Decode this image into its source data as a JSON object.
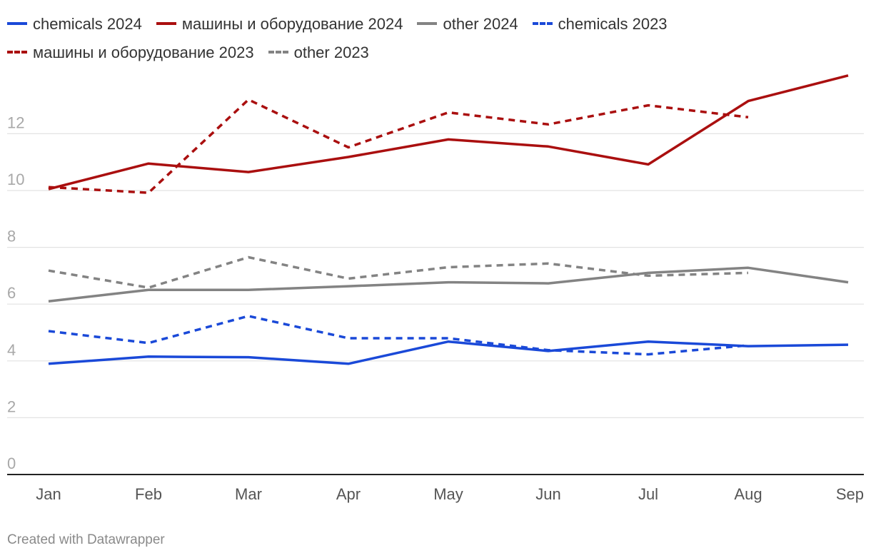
{
  "chart_data": {
    "type": "line",
    "categories": [
      "Jan",
      "Feb",
      "Mar",
      "Apr",
      "May",
      "Jun",
      "Jul",
      "Aug",
      "Sep"
    ],
    "ylim": [
      0,
      14
    ],
    "yticks": [
      0,
      2,
      4,
      6,
      8,
      10,
      12
    ],
    "grid": true,
    "legend_position": "top",
    "series": [
      {
        "name": "chemicals 2024",
        "color": "#1a49d8",
        "dash": "solid",
        "values": [
          3.9,
          4.15,
          4.13,
          3.9,
          4.68,
          4.35,
          4.68,
          4.52,
          4.57
        ]
      },
      {
        "name": "машины и оборудование 2024",
        "color": "#aa0f0f",
        "dash": "solid",
        "values": [
          10.05,
          10.95,
          10.65,
          11.18,
          11.8,
          11.55,
          10.92,
          13.15,
          14.05
        ]
      },
      {
        "name": "other 2024",
        "color": "#838383",
        "dash": "solid",
        "values": [
          6.1,
          6.5,
          6.5,
          6.63,
          6.77,
          6.73,
          7.1,
          7.28,
          6.77
        ]
      },
      {
        "name": "chemicals 2023",
        "color": "#1a49d8",
        "dash": "dashed",
        "values": [
          5.05,
          4.63,
          5.58,
          4.8,
          4.8,
          4.38,
          4.23,
          4.55,
          null
        ]
      },
      {
        "name": "машины и оборудование 2023",
        "color": "#aa0f0f",
        "dash": "dashed",
        "values": [
          10.12,
          9.92,
          13.2,
          11.52,
          12.75,
          12.33,
          13.0,
          12.58,
          null
        ]
      },
      {
        "name": "other 2023",
        "color": "#838383",
        "dash": "dashed",
        "values": [
          7.18,
          6.58,
          7.65,
          6.9,
          7.3,
          7.43,
          7.0,
          7.1,
          null
        ]
      }
    ]
  },
  "footer": {
    "credit": "Created with Datawrapper"
  }
}
